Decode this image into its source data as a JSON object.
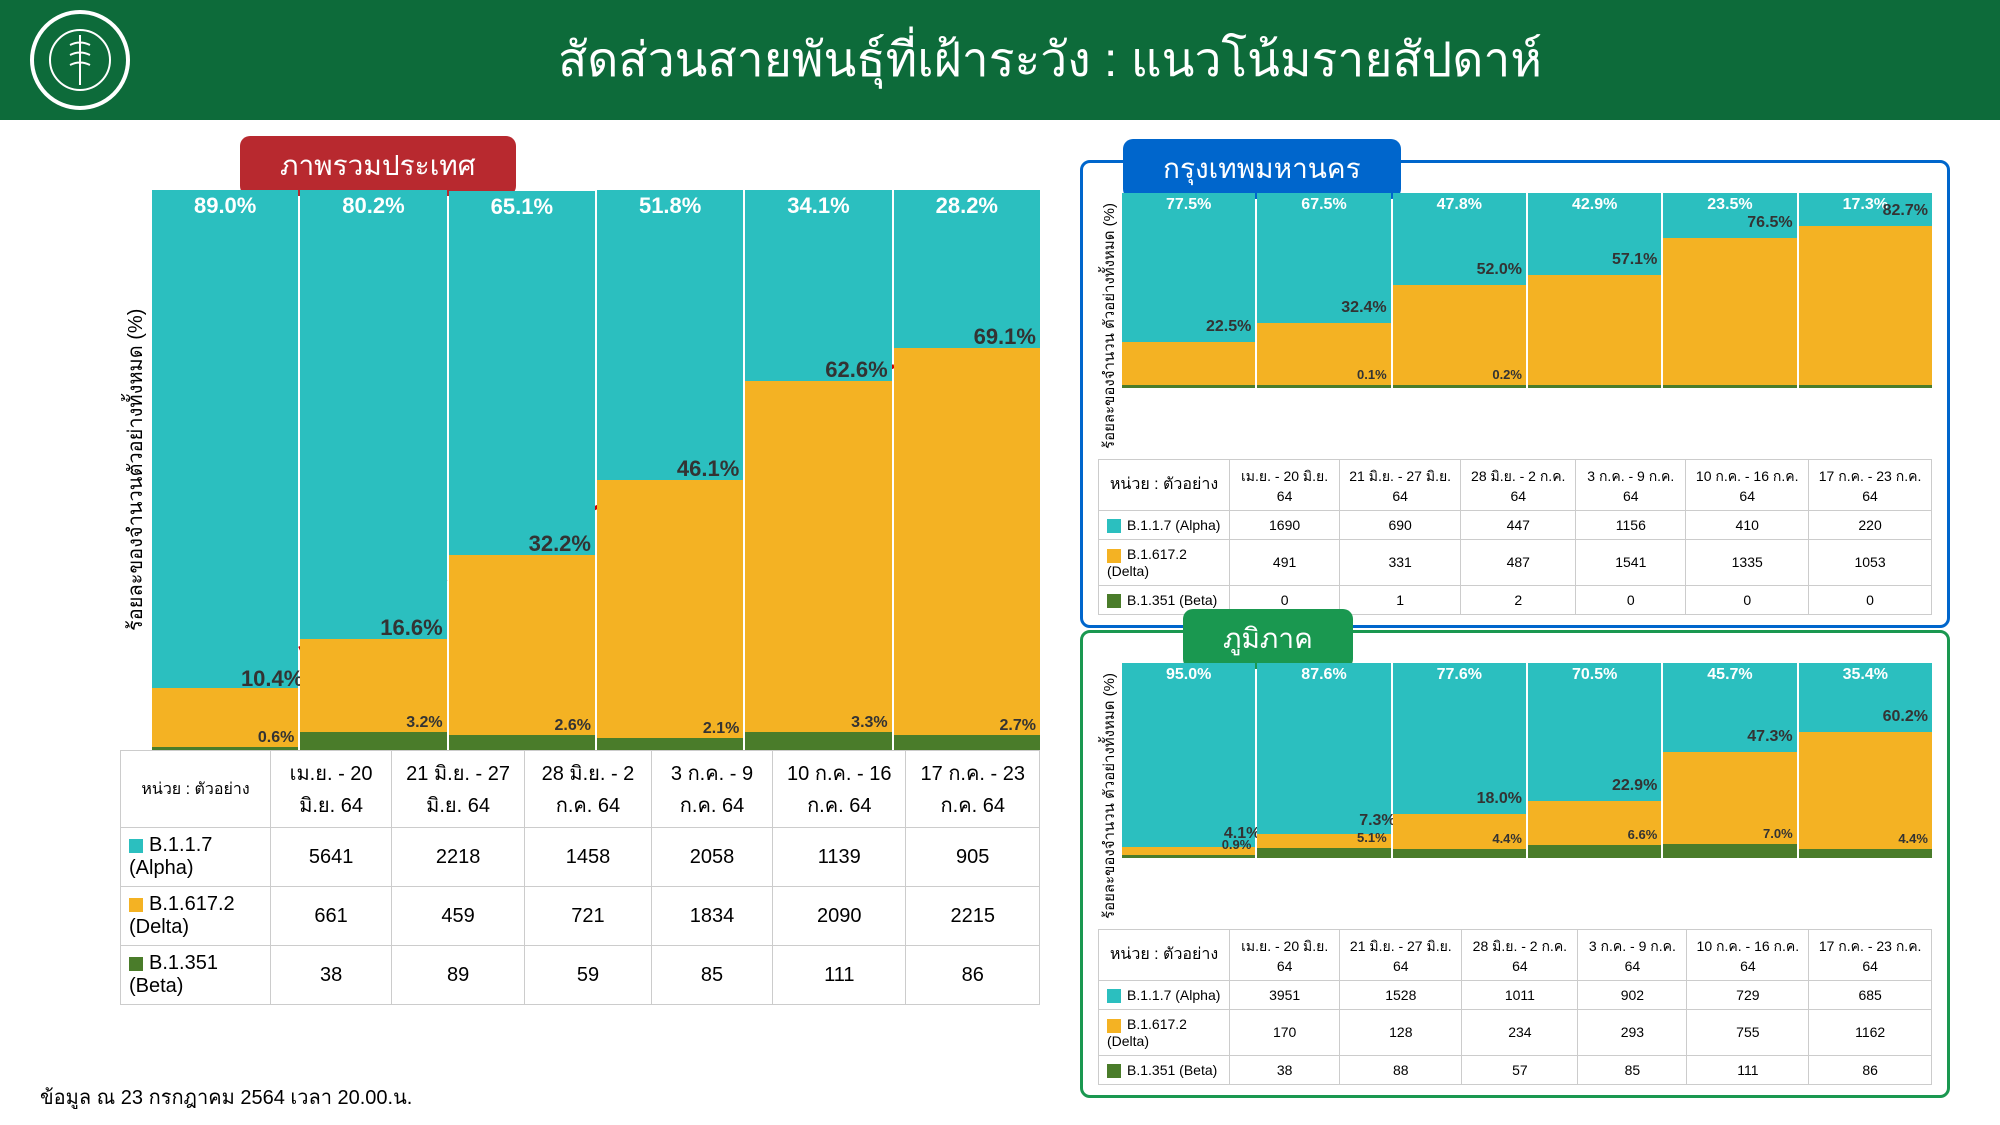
{
  "header": {
    "title": "สัดส่วนสายพันธุ์ที่เฝ้าระวัง : แนวโน้มรายสัปดาห์",
    "logo_text": "MINISTRY OF PUBLIC HEALTH"
  },
  "colors": {
    "alpha": "#2bbfbf",
    "delta": "#f4b223",
    "beta": "#4a7c2a",
    "header_bg": "#0d6b3a",
    "tab_national": "#b8292f",
    "tab_bkk": "#0066cc",
    "tab_region": "#1a9850"
  },
  "legend": {
    "alpha": "B.1.1.7 (Alpha)",
    "delta": "B.1.617.2 (Delta)",
    "beta": "B.1.351 (Beta)",
    "unit": "หน่วย : ตัวอย่าง"
  },
  "y_axis": {
    "main": "ร้อยละของจำนวนตัวอย่างทั้งหมด (%)",
    "small": "ร้อยละของจำนวน\nตัวอย่างทั้งหมด (%)"
  },
  "periods": [
    "เม.ย. - 20 มิ.ย. 64",
    "21 มิ.ย. - 27 มิ.ย. 64",
    "28 มิ.ย. - 2 ก.ค. 64",
    "3 ก.ค. - 9 ก.ค. 64",
    "10 ก.ค. - 16 ก.ค. 64",
    "17 ก.ค. - 23 ก.ค. 64"
  ],
  "national": {
    "title": "ภาพรวมประเทศ",
    "bars": [
      {
        "alpha": 89.0,
        "delta": 10.4,
        "beta": 0.6,
        "alpha_l": "89.0%",
        "delta_l": "10.4%",
        "beta_l": "0.6%"
      },
      {
        "alpha": 80.2,
        "delta": 16.6,
        "beta": 3.2,
        "alpha_l": "80.2%",
        "delta_l": "16.6%",
        "beta_l": "3.2%"
      },
      {
        "alpha": 65.1,
        "delta": 32.2,
        "beta": 2.6,
        "alpha_l": "65.1%",
        "delta_l": "32.2%",
        "beta_l": "2.6%"
      },
      {
        "alpha": 51.8,
        "delta": 46.1,
        "beta": 2.1,
        "alpha_l": "51.8%",
        "delta_l": "46.1%",
        "beta_l": "2.1%"
      },
      {
        "alpha": 34.1,
        "delta": 62.6,
        "beta": 3.3,
        "alpha_l": "34.1%",
        "delta_l": "62.6%",
        "beta_l": "3.3%"
      },
      {
        "alpha": 28.2,
        "delta": 69.1,
        "beta": 2.7,
        "alpha_l": "28.2%",
        "delta_l": "69.1%",
        "beta_l": "2.7%"
      }
    ],
    "counts": {
      "alpha": [
        5641,
        2218,
        1458,
        2058,
        1139,
        905
      ],
      "delta": [
        661,
        459,
        721,
        1834,
        2090,
        2215
      ],
      "beta": [
        38,
        89,
        59,
        85,
        111,
        86
      ]
    }
  },
  "bangkok": {
    "title": "กรุงเทพมหานคร",
    "bars": [
      {
        "alpha": 77.5,
        "delta": 22.5,
        "beta": 0,
        "alpha_l": "77.5%",
        "delta_l": "22.5%",
        "beta_l": ""
      },
      {
        "alpha": 67.5,
        "delta": 32.4,
        "beta": 0.1,
        "alpha_l": "67.5%",
        "delta_l": "32.4%",
        "beta_l": "0.1%"
      },
      {
        "alpha": 47.8,
        "delta": 52.0,
        "beta": 0.2,
        "alpha_l": "47.8%",
        "delta_l": "52.0%",
        "beta_l": "0.2%"
      },
      {
        "alpha": 42.9,
        "delta": 57.1,
        "beta": 0,
        "alpha_l": "42.9%",
        "delta_l": "57.1%",
        "beta_l": ""
      },
      {
        "alpha": 23.5,
        "delta": 76.5,
        "beta": 0,
        "alpha_l": "23.5%",
        "delta_l": "76.5%",
        "beta_l": ""
      },
      {
        "alpha": 17.3,
        "delta": 82.7,
        "beta": 0,
        "alpha_l": "17.3%",
        "delta_l": "82.7%",
        "beta_l": ""
      }
    ],
    "counts": {
      "alpha": [
        1690,
        690,
        447,
        1156,
        410,
        220
      ],
      "delta": [
        491,
        331,
        487,
        1541,
        1335,
        1053
      ],
      "beta": [
        0,
        1,
        2,
        0,
        0,
        0
      ]
    }
  },
  "region": {
    "title": "ภูมิภาค",
    "bars": [
      {
        "alpha": 95.0,
        "delta": 4.1,
        "beta": 0.9,
        "alpha_l": "95.0%",
        "delta_l": "4.1%",
        "beta_l": "0.9%"
      },
      {
        "alpha": 87.6,
        "delta": 7.3,
        "beta": 5.1,
        "alpha_l": "87.6%",
        "delta_l": "7.3%",
        "beta_l": "5.1%"
      },
      {
        "alpha": 77.6,
        "delta": 18.0,
        "beta": 4.4,
        "alpha_l": "77.6%",
        "delta_l": "18.0%",
        "beta_l": "4.4%"
      },
      {
        "alpha": 70.5,
        "delta": 22.9,
        "beta": 6.6,
        "alpha_l": "70.5%",
        "delta_l": "22.9%",
        "beta_l": "6.6%"
      },
      {
        "alpha": 45.7,
        "delta": 47.3,
        "beta": 7.0,
        "alpha_l": "45.7%",
        "delta_l": "47.3%",
        "beta_l": "7.0%"
      },
      {
        "alpha": 35.4,
        "delta": 60.2,
        "beta": 4.4,
        "alpha_l": "35.4%",
        "delta_l": "60.2%",
        "beta_l": "4.4%"
      }
    ],
    "counts": {
      "alpha": [
        3951,
        1528,
        1011,
        902,
        729,
        685
      ],
      "delta": [
        170,
        128,
        234,
        293,
        755,
        1162
      ],
      "beta": [
        38,
        88,
        57,
        85,
        111,
        86
      ]
    }
  },
  "footer": "ข้อมูล ณ 23 กรกฎาคม 2564 เวลา 20.00.น."
}
